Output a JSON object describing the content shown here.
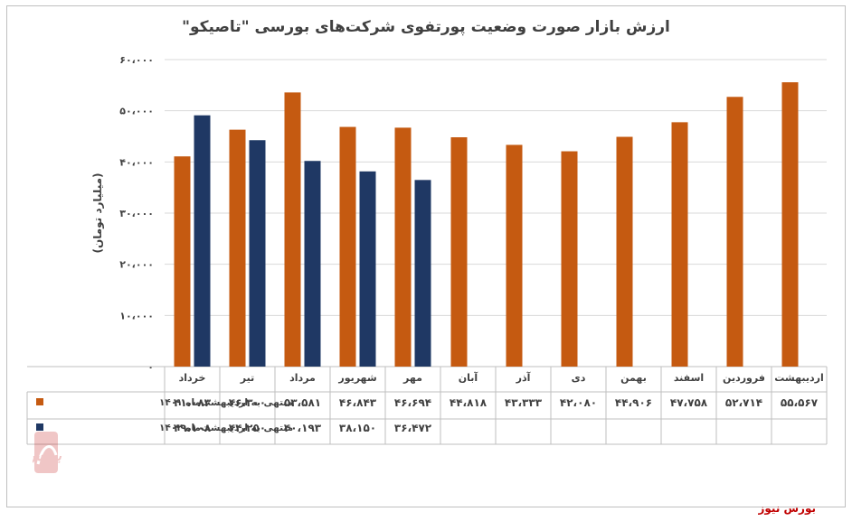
{
  "chart_data": {
    "type": "bar",
    "title": "ارزش بازار صورت وضعیت پورتفوی شرکت‌های بورسی \"تاصیکو\"",
    "ylabel": "(میلیارد تومان)",
    "ylim": [
      0,
      60000
    ],
    "yticks": [
      "۶۰،۰۰۰",
      "۵۰،۰۰۰",
      "۴۰،۰۰۰",
      "۳۰،۰۰۰",
      "۲۰،۰۰۰",
      "۱۰،۰۰۰",
      "۰"
    ],
    "categories": [
      "خرداد",
      "تیر",
      "مرداد",
      "شهریور",
      "مهر",
      "آبان",
      "آذر",
      "دی",
      "بهمن",
      "اسفند",
      "فروردین",
      "اردیبهشت"
    ],
    "series": [
      {
        "name": "منتهی به اردیبهشت‌ماه ۱۴۰۱",
        "color": "#c55a11",
        "values": [
          41083,
          46300,
          53581,
          46843,
          46694,
          44818,
          43333,
          42080,
          44906,
          47758,
          52714,
          55567
        ],
        "labels": [
          "۴۱،۰۸۳",
          "۴۶،۳۰۰",
          "۵۳،۵۸۱",
          "۴۶،۸۴۳",
          "۴۶،۶۹۴",
          "۴۴،۸۱۸",
          "۴۳،۳۳۳",
          "۴۲،۰۸۰",
          "۴۴،۹۰۶",
          "۴۷،۷۵۸",
          "۵۲،۷۱۴",
          "۵۵،۵۶۷"
        ]
      },
      {
        "name": "منتهی به اردیبهشت‌ماه ۱۴۰۲",
        "color": "#1f3864",
        "values": [
          49108,
          44250,
          40193,
          38150,
          36472,
          null,
          null,
          null,
          null,
          null,
          null,
          null
        ],
        "labels": [
          "۴۹،۱۰۸",
          "۴۴،۲۵۰",
          "۴۰،۱۹۳",
          "۳۸،۱۵۰",
          "۳۶،۴۷۲",
          "",
          "",
          "",
          "",
          "",
          "",
          ""
        ]
      }
    ],
    "legend": "data-table"
  },
  "source": "بورس نیوز",
  "watermark_text": "بورس نیوز"
}
